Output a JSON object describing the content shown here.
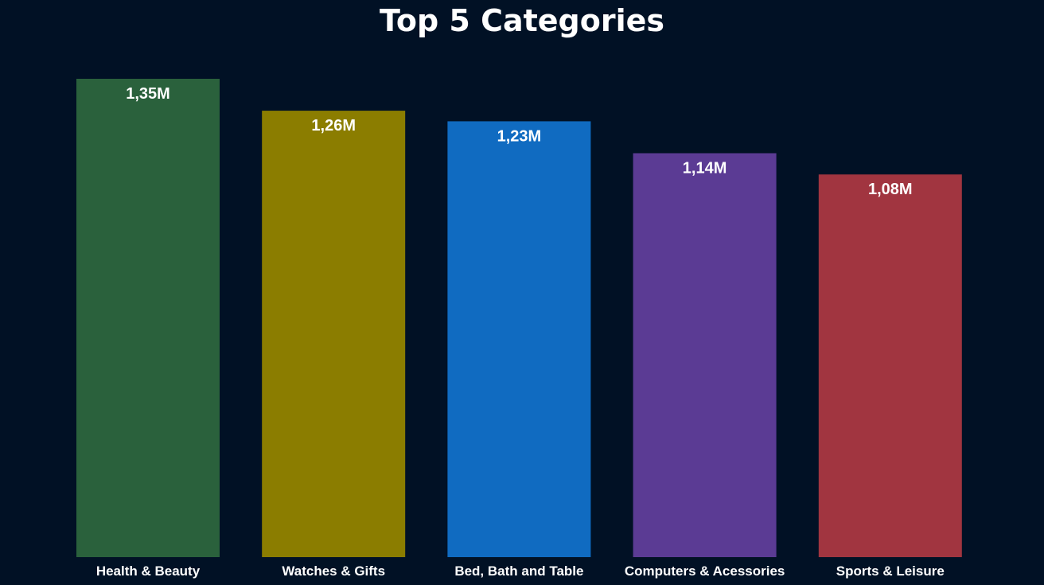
{
  "chart_data": {
    "type": "bar",
    "title": "Top 5 Categories",
    "categories": [
      "Health & Beauty",
      "Watches & Gifts",
      "Bed, Bath and Table",
      "Computers & Acessories",
      "Sports & Leisure"
    ],
    "values": [
      1350000,
      1260000,
      1230000,
      1140000,
      1080000
    ],
    "data_labels": [
      "1,35M",
      "1,26M",
      "1,23M",
      "1,14M",
      "1,08M"
    ],
    "colors": [
      "#2a613c",
      "#8b7d00",
      "#106bc1",
      "#5b3b94",
      "#a13540"
    ],
    "ylim": [
      0,
      1350000
    ],
    "grid": false,
    "legend": "none"
  }
}
